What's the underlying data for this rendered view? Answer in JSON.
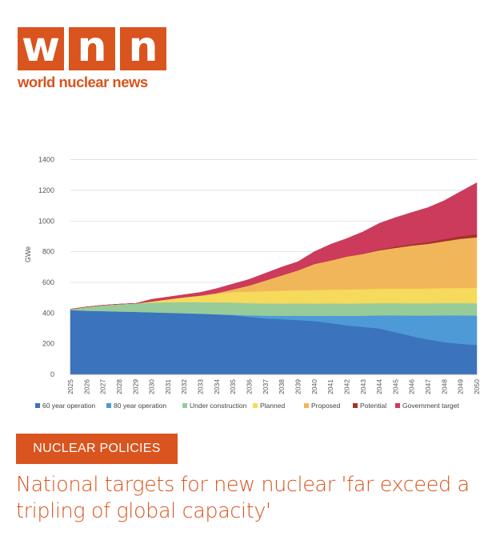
{
  "logo": {
    "letters": [
      "w",
      "n",
      "n"
    ],
    "tagline": "world nuclear news"
  },
  "category": "NUCLEAR POLICIES",
  "headline": "National targets for new nuclear 'far exceed a tripling of global capacity'",
  "colors": {
    "brand": "#d9541e",
    "s60": "#3b73bd",
    "s80": "#4d9ad6",
    "underConstruction": "#97cc9a",
    "planned": "#f6da5b",
    "proposed": "#f2b65a",
    "potential": "#a33229",
    "government": "#cc3b5b"
  },
  "chart_data": {
    "type": "area",
    "stacked": true,
    "title": "",
    "xlabel": "",
    "ylabel": "GWe",
    "ylim": [
      0,
      1450
    ],
    "yticks": [
      0,
      200,
      400,
      600,
      800,
      1000,
      1200,
      1400
    ],
    "grid": true,
    "legend_position": "bottom",
    "x": [
      "2025",
      "2026",
      "2027",
      "2028",
      "2029",
      "2030",
      "2031",
      "2032",
      "2033",
      "2034",
      "2035",
      "2036",
      "2037",
      "2038",
      "2039",
      "2040",
      "2041",
      "2042",
      "2043",
      "2044",
      "2045",
      "2046",
      "2047",
      "2048",
      "2049",
      "2050"
    ],
    "series": [
      {
        "name": "60 year operation",
        "color": "#3b73bd",
        "values": [
          420,
          415,
          413,
          410,
          408,
          405,
          402,
          399,
          396,
          392,
          385,
          375,
          365,
          360,
          355,
          348,
          335,
          320,
          310,
          300,
          275,
          250,
          228,
          210,
          200,
          192
        ]
      },
      {
        "name": "80 year operation",
        "color": "#4d9ad6",
        "values": [
          0,
          0,
          0,
          0,
          0,
          0,
          0,
          0,
          0,
          0,
          4,
          10,
          18,
          22,
          28,
          34,
          48,
          62,
          73,
          85,
          110,
          134,
          156,
          175,
          185,
          192
        ]
      },
      {
        "name": "Under construction",
        "color": "#97cc9a",
        "values": [
          5,
          25,
          38,
          48,
          55,
          63,
          68,
          73,
          75,
          78,
          80,
          80,
          80,
          80,
          80,
          80,
          80,
          80,
          80,
          80,
          80,
          80,
          80,
          80,
          80,
          80
        ]
      },
      {
        "name": "Planned",
        "color": "#f6da5b",
        "values": [
          0,
          0,
          0,
          0,
          0,
          8,
          20,
          30,
          40,
          55,
          68,
          75,
          80,
          84,
          86,
          88,
          90,
          92,
          93,
          94,
          95,
          96,
          97,
          98,
          99,
          100
        ]
      },
      {
        "name": "Proposed",
        "color": "#f2b65a",
        "values": [
          0,
          0,
          0,
          0,
          0,
          0,
          0,
          2,
          4,
          6,
          18,
          40,
          70,
          100,
          130,
          170,
          190,
          215,
          230,
          250,
          265,
          280,
          290,
          305,
          320,
          330
        ]
      },
      {
        "name": "Potential",
        "color": "#a33229",
        "values": [
          0,
          0,
          0,
          0,
          0,
          0,
          0,
          0,
          0,
          0,
          0,
          0,
          0,
          0,
          0,
          0,
          0,
          0,
          0,
          5,
          8,
          10,
          12,
          15,
          18,
          20
        ]
      },
      {
        "name": "Government target",
        "color": "#cc3b5b",
        "values": [
          0,
          0,
          0,
          0,
          0,
          14,
          15,
          16,
          20,
          29,
          35,
          40,
          47,
          54,
          56,
          80,
          105,
          117,
          144,
          171,
          190,
          206,
          225,
          250,
          290,
          336
        ]
      }
    ]
  }
}
